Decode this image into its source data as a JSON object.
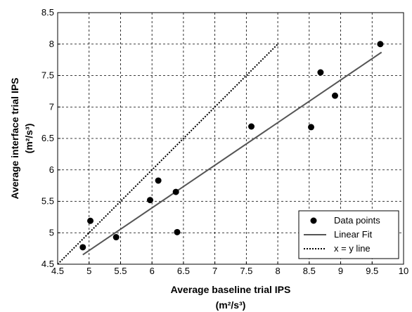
{
  "chart_data": {
    "type": "scatter",
    "xlabel": "Average baseline trial IPS",
    "xlabel_units": "(m²/s³)",
    "ylabel": "Average interface trial IPS",
    "ylabel_units": "(m²/s³)",
    "xlim": [
      4.5,
      10
    ],
    "ylim": [
      4.5,
      8.5
    ],
    "x_ticks": [
      "4.5",
      "5",
      "5.5",
      "6",
      "6.5",
      "7",
      "7.5",
      "8",
      "8.5",
      "9",
      "9.5",
      "10"
    ],
    "y_ticks": [
      "4.5",
      "5",
      "5.5",
      "6",
      "6.5",
      "7",
      "7.5",
      "8",
      "8.5"
    ],
    "grid": true,
    "legend_position": "bottom-right",
    "series": [
      {
        "name": "Data points",
        "kind": "scatter",
        "color": "#000000",
        "points": [
          {
            "x": 4.9,
            "y": 4.77
          },
          {
            "x": 5.02,
            "y": 5.19
          },
          {
            "x": 5.43,
            "y": 4.93
          },
          {
            "x": 5.97,
            "y": 5.52
          },
          {
            "x": 6.1,
            "y": 5.83
          },
          {
            "x": 6.38,
            "y": 5.65
          },
          {
            "x": 6.4,
            "y": 5.01
          },
          {
            "x": 7.58,
            "y": 6.69
          },
          {
            "x": 8.53,
            "y": 6.68
          },
          {
            "x": 8.68,
            "y": 7.55
          },
          {
            "x": 8.91,
            "y": 7.18
          },
          {
            "x": 9.63,
            "y": 8.0
          }
        ]
      },
      {
        "name": "Linear Fit",
        "kind": "line",
        "color": "#555555",
        "style": "solid",
        "points": [
          {
            "x": 4.9,
            "y": 4.65
          },
          {
            "x": 9.65,
            "y": 7.87
          }
        ]
      },
      {
        "name": "x = y line",
        "kind": "line",
        "color": "#000000",
        "style": "dotted",
        "points": [
          {
            "x": 4.5,
            "y": 4.5
          },
          {
            "x": 8.0,
            "y": 8.0
          }
        ]
      }
    ]
  }
}
